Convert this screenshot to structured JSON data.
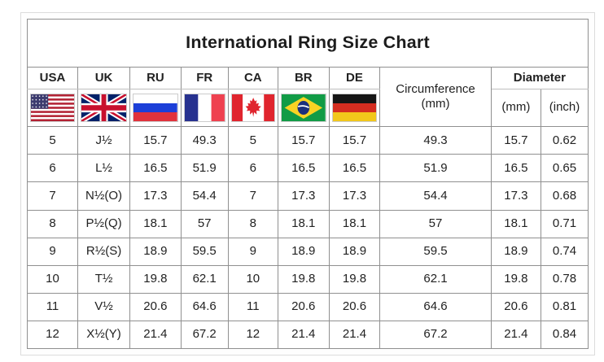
{
  "title": "International Ring Size Chart",
  "header": {
    "countries": [
      {
        "label": "USA",
        "icon": "usa-flag-icon"
      },
      {
        "label": "UK",
        "icon": "uk-flag-icon"
      },
      {
        "label": "RU",
        "icon": "russia-flag-icon"
      },
      {
        "label": "FR",
        "icon": "france-flag-icon"
      },
      {
        "label": "CA",
        "icon": "canada-flag-icon"
      },
      {
        "label": "BR",
        "icon": "brazil-flag-icon"
      },
      {
        "label": "DE",
        "icon": "germany-flag-icon"
      }
    ],
    "circumference_line1": "Circumference",
    "circumference_line2": "(mm)",
    "diameter_label": "Diameter",
    "diameter_units": [
      "(mm)",
      "(inch)"
    ]
  },
  "chart_data": {
    "type": "table",
    "title": "International Ring Size Chart",
    "columns": [
      "USA",
      "UK",
      "RU",
      "FR",
      "CA",
      "BR",
      "DE",
      "Circumference (mm)",
      "Diameter (mm)",
      "Diameter (inch)"
    ],
    "rows": [
      [
        "5",
        "J½",
        "15.7",
        "49.3",
        "5",
        "15.7",
        "15.7",
        "49.3",
        "15.7",
        "0.62"
      ],
      [
        "6",
        "L½",
        "16.5",
        "51.9",
        "6",
        "16.5",
        "16.5",
        "51.9",
        "16.5",
        "0.65"
      ],
      [
        "7",
        "N½(O)",
        "17.3",
        "54.4",
        "7",
        "17.3",
        "17.3",
        "54.4",
        "17.3",
        "0.68"
      ],
      [
        "8",
        "P½(Q)",
        "18.1",
        "57",
        "8",
        "18.1",
        "18.1",
        "57",
        "18.1",
        "0.71"
      ],
      [
        "9",
        "R½(S)",
        "18.9",
        "59.5",
        "9",
        "18.9",
        "18.9",
        "59.5",
        "18.9",
        "0.74"
      ],
      [
        "10",
        "T½",
        "19.8",
        "62.1",
        "10",
        "19.8",
        "19.8",
        "62.1",
        "19.8",
        "0.78"
      ],
      [
        "11",
        "V½",
        "20.6",
        "64.6",
        "11",
        "20.6",
        "20.6",
        "64.6",
        "20.6",
        "0.81"
      ],
      [
        "12",
        "X½(Y)",
        "21.4",
        "67.2",
        "12",
        "21.4",
        "21.4",
        "67.2",
        "21.4",
        "0.84"
      ]
    ]
  },
  "colors": {
    "table_border": "#909090",
    "frame_border": "#dcdcdc",
    "text": "#222222",
    "title_text": "#1c1c1c"
  }
}
